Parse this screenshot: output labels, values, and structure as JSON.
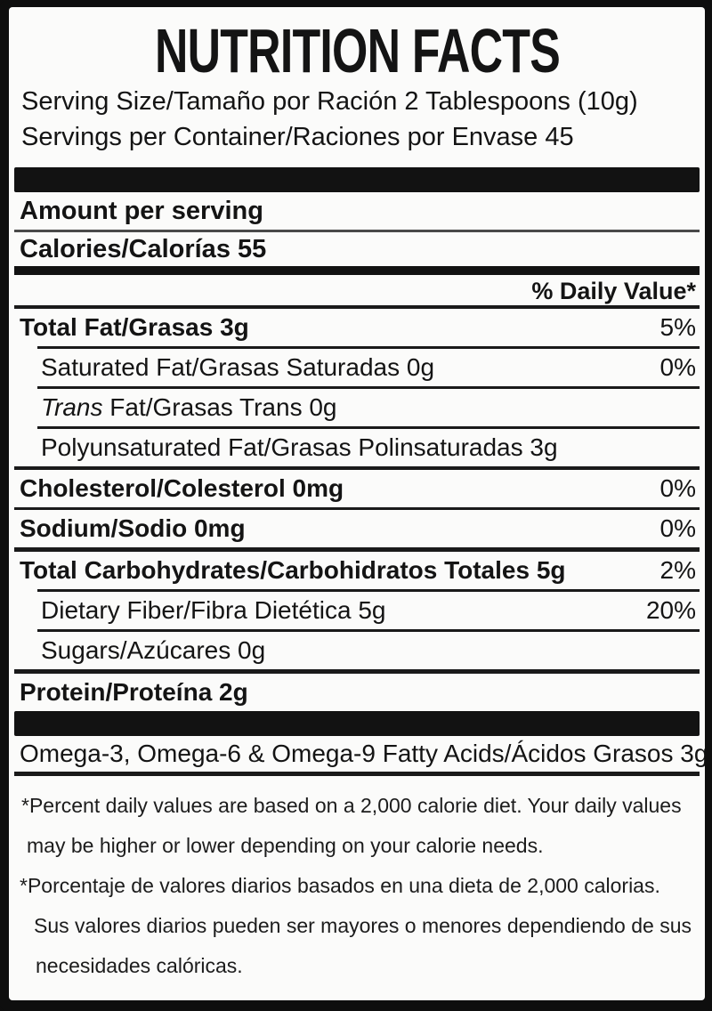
{
  "label": {
    "title": "NUTRITION FACTS",
    "serving_size": "Serving Size/Tamaño por Ración 2 Tablespoons (10g)",
    "servings_per_container": "Servings per Container/Raciones por Envase 45",
    "amount_per_serving": "Amount per serving",
    "calories": "Calories/Calorías 55",
    "daily_value_header": "% Daily Value*",
    "rows": [
      {
        "name": "Total Fat/Grasas 3g",
        "value": "5%"
      },
      {
        "name": "Saturated Fat/Grasas Saturadas 0g",
        "value": "0%"
      },
      {
        "name_italic": "Trans",
        "name_rest": " Fat/Grasas Trans 0g",
        "value": ""
      },
      {
        "name": "Polyunsaturated Fat/Grasas Polinsaturadas 3g",
        "value": ""
      },
      {
        "name": "Cholesterol/Colesterol 0mg",
        "value": "0%"
      },
      {
        "name": "Sodium/Sodio 0mg",
        "value": "0%"
      },
      {
        "name": "Total Carbohydrates/Carbohidratos Totales 5g",
        "value": "2%"
      },
      {
        "name": "Dietary Fiber/Fibra Dietética 5g",
        "value": "20%"
      },
      {
        "name": "Sugars/Azúcares 0g",
        "value": ""
      },
      {
        "name": "Protein/Proteína 2g",
        "value": ""
      }
    ],
    "omega_row": "Omega-3, Omega-6 & Omega-9 Fatty Acids/Ácidos Grasos 3g",
    "footnotes": [
      "*Percent daily values are based on a 2,000 calorie diet. Your daily values",
      "may be higher or lower depending on your calorie needs.",
      "*Porcentaje de valores diarios basados en una dieta de 2,000 calorias.",
      "Sus valores diarios pueden ser mayores o menores dependiendo de sus",
      "necesidades calóricas."
    ],
    "colors": {
      "frame": "#0e0e0e",
      "background": "#fbfbfa",
      "text": "#141414"
    }
  }
}
